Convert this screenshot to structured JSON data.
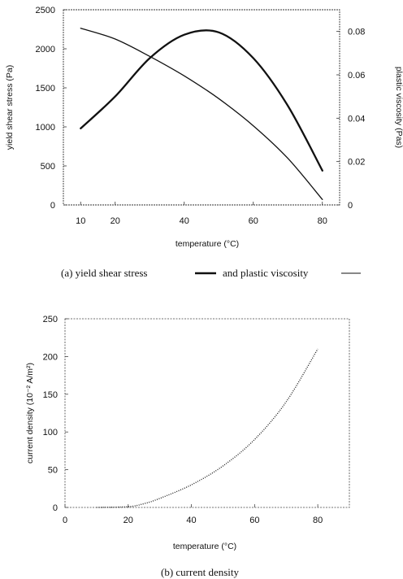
{
  "chart_data": [
    {
      "type": "line",
      "caption": "(a) yield shear stress",
      "caption_mid": "and plastic viscosity",
      "xlabel": "temperature (°C)",
      "ylabel": "yield shear stress (Pa)",
      "y2label": "plastic viscosity (Pas)",
      "xlim": [
        5,
        85
      ],
      "ylim": [
        0,
        2500
      ],
      "y2lim": [
        0,
        0.09
      ],
      "xticks": [
        10,
        20,
        40,
        60,
        80
      ],
      "xtick_labels": [
        "10",
        "20",
        "40",
        "60",
        "80"
      ],
      "yticks": [
        0,
        500,
        1000,
        1500,
        2000,
        2500
      ],
      "ytick_labels": [
        "0",
        "500",
        "1000",
        "1500",
        "2000",
        "2500"
      ],
      "y2ticks": [
        0,
        0.02,
        0.04,
        0.06,
        0.08
      ],
      "y2tick_labels": [
        "0",
        "0.02",
        "0.04",
        "0.06",
        "0.08"
      ],
      "series": [
        {
          "role": "yield-shear-stress",
          "axis": "left",
          "x": [
            10,
            20,
            30,
            40,
            50,
            60,
            70,
            80
          ],
          "y": [
            980,
            1390,
            1880,
            2180,
            2210,
            1880,
            1270,
            440
          ]
        },
        {
          "role": "plastic-viscosity",
          "axis": "right",
          "x": [
            10,
            20,
            30,
            40,
            50,
            60,
            70,
            80
          ],
          "y": [
            0.0815,
            0.0765,
            0.0685,
            0.0595,
            0.049,
            0.0365,
            0.0215,
            0.0025
          ]
        }
      ],
      "grid": false
    },
    {
      "type": "line",
      "caption": "(b) current density",
      "xlabel": "temperature (°C)",
      "ylabel": "current density (10⁻² A/m²)",
      "xlim": [
        0,
        90
      ],
      "ylim": [
        0,
        250
      ],
      "xticks": [
        0,
        20,
        40,
        60,
        80
      ],
      "xtick_labels": [
        "0",
        "20",
        "40",
        "60",
        "80"
      ],
      "yticks": [
        0,
        50,
        100,
        150,
        200,
        250
      ],
      "ytick_labels": [
        "0",
        "50",
        "100",
        "150",
        "200",
        "250"
      ],
      "series": [
        {
          "role": "current-density",
          "x": [
            10,
            20,
            25,
            30,
            40,
            50,
            60,
            70,
            80
          ],
          "y": [
            0,
            1,
            5,
            12,
            30,
            55,
            90,
            140,
            210
          ]
        }
      ],
      "grid": false
    }
  ]
}
